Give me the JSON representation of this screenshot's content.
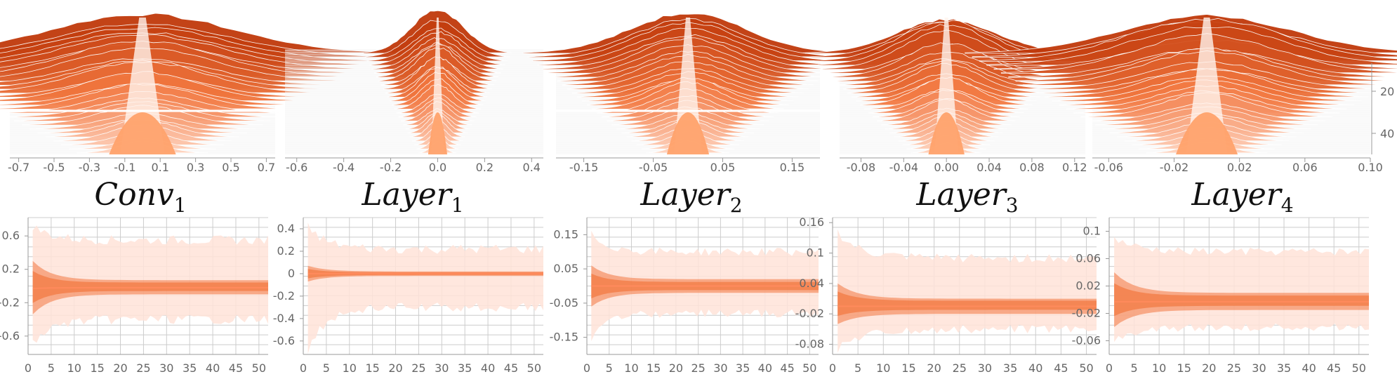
{
  "colors": {
    "dark": "#c0390b",
    "mid": "#f2773f",
    "light": "#ffd1bb",
    "band": "#ffe3d8",
    "peak": "#ffa26b",
    "grid": "#cccccc",
    "axis": "#999999",
    "bg_stripe": "#eeeeee"
  },
  "chart_data": [
    {
      "type": "area",
      "title": "Conv",
      "title_sub": "1",
      "histogram": {
        "x_ticks": [
          "-0.7",
          "-0.5",
          "-0.3",
          "-0.1",
          "0.1",
          "0.3",
          "0.5",
          "0.7"
        ],
        "x_tick_values": [
          -0.7,
          -0.5,
          -0.3,
          -0.1,
          0.1,
          0.3,
          0.5,
          0.7
        ],
        "xlim": [
          -0.75,
          0.75
        ],
        "spread": 0.28,
        "y_ticks": []
      },
      "trace": {
        "x_ticks": [
          "0",
          "5",
          "10",
          "15",
          "20",
          "25",
          "30",
          "35",
          "40",
          "45",
          "50"
        ],
        "xlim": [
          0,
          52
        ],
        "y_ticks": [
          "0.6",
          "0.2",
          "-0.2",
          "-0.6"
        ],
        "y_tick_values": [
          0.6,
          0.2,
          -0.2,
          -0.6
        ],
        "ylim": [
          -0.82,
          0.82
        ],
        "outer_band": [
          -0.7,
          0.72,
          -0.4,
          0.55
        ],
        "inner_band": [
          -0.34,
          0.3,
          -0.1,
          0.07
        ],
        "center": [
          -0.03,
          -0.02
        ]
      }
    },
    {
      "type": "area",
      "title": "Layer",
      "title_sub": "1",
      "histogram": {
        "x_ticks": [
          "-0.6",
          "-0.4",
          "-0.2",
          "0.0",
          "0.2",
          "0.4"
        ],
        "x_tick_values": [
          -0.6,
          -0.4,
          -0.2,
          0.0,
          0.2,
          0.4
        ],
        "xlim": [
          -0.65,
          0.45
        ],
        "spread": 0.06,
        "y_ticks": []
      },
      "trace": {
        "x_ticks": [
          "0",
          "5",
          "10",
          "15",
          "20",
          "25",
          "30",
          "35",
          "40",
          "45",
          "50"
        ],
        "xlim": [
          0,
          52
        ],
        "y_ticks": [
          "0.4",
          "0.2",
          "0",
          "-0.2",
          "-0.4",
          "-0.6"
        ],
        "y_tick_values": [
          0.4,
          0.2,
          0.0,
          -0.2,
          -0.4,
          -0.6
        ],
        "ylim": [
          -0.72,
          0.5
        ],
        "outer_band": [
          -0.68,
          0.42,
          -0.3,
          0.22
        ],
        "inner_band": [
          -0.07,
          0.07,
          -0.02,
          0.02
        ],
        "center": [
          0.0,
          0.0
        ]
      }
    },
    {
      "type": "area",
      "title": "Layer",
      "title_sub": "2",
      "histogram": {
        "x_ticks": [
          "-0.15",
          "-0.05",
          "0.05",
          "0.15"
        ],
        "x_tick_values": [
          -0.15,
          -0.05,
          0.05,
          0.15
        ],
        "xlim": [
          -0.19,
          0.19
        ],
        "spread": 0.045,
        "y_ticks": []
      },
      "trace": {
        "x_ticks": [
          "0",
          "5",
          "10",
          "15",
          "20",
          "25",
          "30",
          "35",
          "40",
          "45",
          "50"
        ],
        "xlim": [
          0,
          52
        ],
        "y_ticks": [
          "0.15",
          "0.05",
          "-0.05",
          "-0.15"
        ],
        "y_tick_values": [
          0.15,
          0.05,
          -0.05,
          -0.15
        ],
        "ylim": [
          -0.2,
          0.2
        ],
        "outer_band": [
          -0.15,
          0.15,
          -0.08,
          0.1
        ],
        "inner_band": [
          -0.06,
          0.06,
          -0.02,
          0.02
        ],
        "center": [
          0.0,
          0.0
        ]
      }
    },
    {
      "type": "area",
      "title": "Layer",
      "title_sub": "3",
      "histogram": {
        "x_ticks": [
          "-0.08",
          "-0.04",
          "0.00",
          "0.04",
          "0.08",
          "0.12"
        ],
        "x_tick_values": [
          -0.08,
          -0.04,
          0.0,
          0.04,
          0.08,
          0.12
        ],
        "xlim": [
          -0.1,
          0.13
        ],
        "spread": 0.025,
        "y_ticks": []
      },
      "trace": {
        "x_ticks": [
          "0",
          "5",
          "10",
          "15",
          "20",
          "25",
          "30",
          "35",
          "40",
          "45",
          "50"
        ],
        "xlim": [
          0,
          52
        ],
        "y_ticks": [
          "0.16",
          "0.1",
          "0.04",
          "-0.02",
          "-0.08"
        ],
        "y_tick_values": [
          0.16,
          0.1,
          0.04,
          -0.02,
          -0.08
        ],
        "ylim": [
          -0.1,
          0.17
        ],
        "outer_band": [
          -0.09,
          0.14,
          -0.05,
          0.09
        ],
        "inner_band": [
          -0.04,
          0.04,
          -0.02,
          0.01
        ],
        "center": [
          -0.005,
          -0.005
        ]
      }
    },
    {
      "type": "area",
      "title": "Layer",
      "title_sub": "4",
      "histogram": {
        "x_ticks": [
          "-0.06",
          "-0.02",
          "0.02",
          "0.06",
          "0.10"
        ],
        "x_tick_values": [
          -0.06,
          -0.02,
          0.02,
          0.06,
          0.1
        ],
        "xlim": [
          -0.07,
          0.1
        ],
        "spread": 0.028,
        "y_ticks": [
          "20",
          "40"
        ],
        "y_tick_values": [
          20,
          40
        ]
      },
      "trace": {
        "x_ticks": [
          "0",
          "5",
          "10",
          "15",
          "20",
          "25",
          "30",
          "35",
          "40",
          "45",
          "50"
        ],
        "xlim": [
          0,
          52
        ],
        "y_ticks": [
          "0.1",
          "0.06",
          "0.02",
          "-0.02",
          "-0.06"
        ],
        "y_tick_values": [
          0.1,
          0.06,
          0.02,
          -0.02,
          -0.06
        ],
        "ylim": [
          -0.08,
          0.12
        ],
        "outer_band": [
          -0.06,
          0.09,
          -0.04,
          0.07
        ],
        "inner_band": [
          -0.04,
          0.04,
          -0.015,
          0.01
        ],
        "center": [
          -0.003,
          -0.003
        ]
      }
    }
  ]
}
